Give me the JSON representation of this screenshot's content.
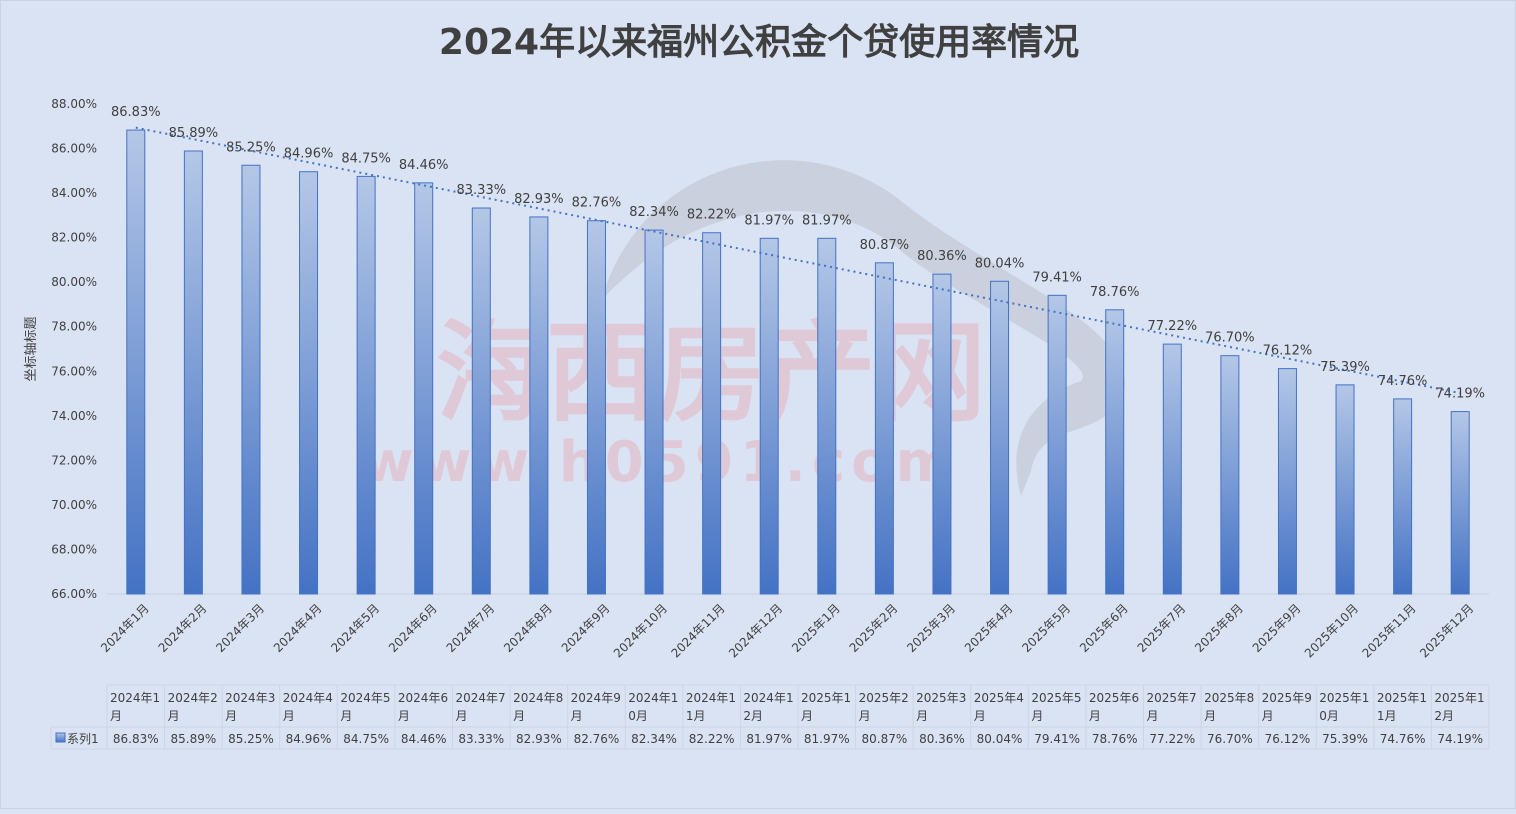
{
  "chart_data": {
    "type": "bar",
    "title": "2024年以来福州公积金个贷使用率情况",
    "ylabel": "坐标轴标题",
    "xlabel": "",
    "ylim": [
      66,
      88
    ],
    "ytick_step": 2,
    "ytick_labels": [
      "66.00%",
      "68.00%",
      "70.00%",
      "72.00%",
      "74.00%",
      "76.00%",
      "78.00%",
      "80.00%",
      "82.00%",
      "84.00%",
      "86.00%",
      "88.00%"
    ],
    "categories": [
      "2024年1月",
      "2024年2月",
      "2024年3月",
      "2024年4月",
      "2024年5月",
      "2024年6月",
      "2024年7月",
      "2024年8月",
      "2024年9月",
      "2024年10月",
      "2024年11月",
      "2024年12月",
      "2025年1月",
      "2025年2月",
      "2025年3月",
      "2025年4月",
      "2025年5月",
      "2025年6月",
      "2025年7月",
      "2025年8月",
      "2025年9月",
      "2025年10月",
      "2025年11月",
      "2025年12月"
    ],
    "table_headers": [
      [
        "2024年1",
        "月"
      ],
      [
        "2024年2",
        "月"
      ],
      [
        "2024年3",
        "月"
      ],
      [
        "2024年4",
        "月"
      ],
      [
        "2024年5",
        "月"
      ],
      [
        "2024年6",
        "月"
      ],
      [
        "2024年7",
        "月"
      ],
      [
        "2024年8",
        "月"
      ],
      [
        "2024年9",
        "月"
      ],
      [
        "2024年1",
        "0月"
      ],
      [
        "2024年1",
        "1月"
      ],
      [
        "2024年1",
        "2月"
      ],
      [
        "2025年1",
        "月"
      ],
      [
        "2025年2",
        "月"
      ],
      [
        "2025年3",
        "月"
      ],
      [
        "2025年4",
        "月"
      ],
      [
        "2025年5",
        "月"
      ],
      [
        "2025年6",
        "月"
      ],
      [
        "2025年7",
        "月"
      ],
      [
        "2025年8",
        "月"
      ],
      [
        "2025年9",
        "月"
      ],
      [
        "2025年1",
        "0月"
      ],
      [
        "2025年1",
        "1月"
      ],
      [
        "2025年1",
        "2月"
      ]
    ],
    "series": [
      {
        "name": "系列1",
        "values": [
          86.83,
          85.89,
          85.25,
          84.96,
          84.75,
          84.46,
          83.33,
          82.93,
          82.76,
          82.34,
          82.22,
          81.97,
          81.97,
          80.87,
          80.36,
          80.04,
          79.41,
          78.76,
          77.22,
          76.7,
          76.12,
          75.39,
          74.76,
          74.19
        ],
        "labels": [
          "86.83%",
          "85.89%",
          "85.25%",
          "84.96%",
          "84.75%",
          "84.46%",
          "83.33%",
          "82.93%",
          "82.76%",
          "82.34%",
          "82.22%",
          "81.97%",
          "81.97%",
          "80.87%",
          "80.36%",
          "80.04%",
          "79.41%",
          "78.76%",
          "77.22%",
          "76.70%",
          "76.12%",
          "75.39%",
          "74.76%",
          "74.19%"
        ]
      }
    ],
    "trendline": "linear",
    "grid": false,
    "legend": "data-table",
    "colors": {
      "bar_top": "#b4c7e7",
      "bar_bottom": "#4472c4",
      "bar_edge": "#4472c4",
      "trend": "#4472c4",
      "text": "#404040"
    }
  },
  "watermark": {
    "main": "海西房产网",
    "url": "www.h0591.com"
  }
}
